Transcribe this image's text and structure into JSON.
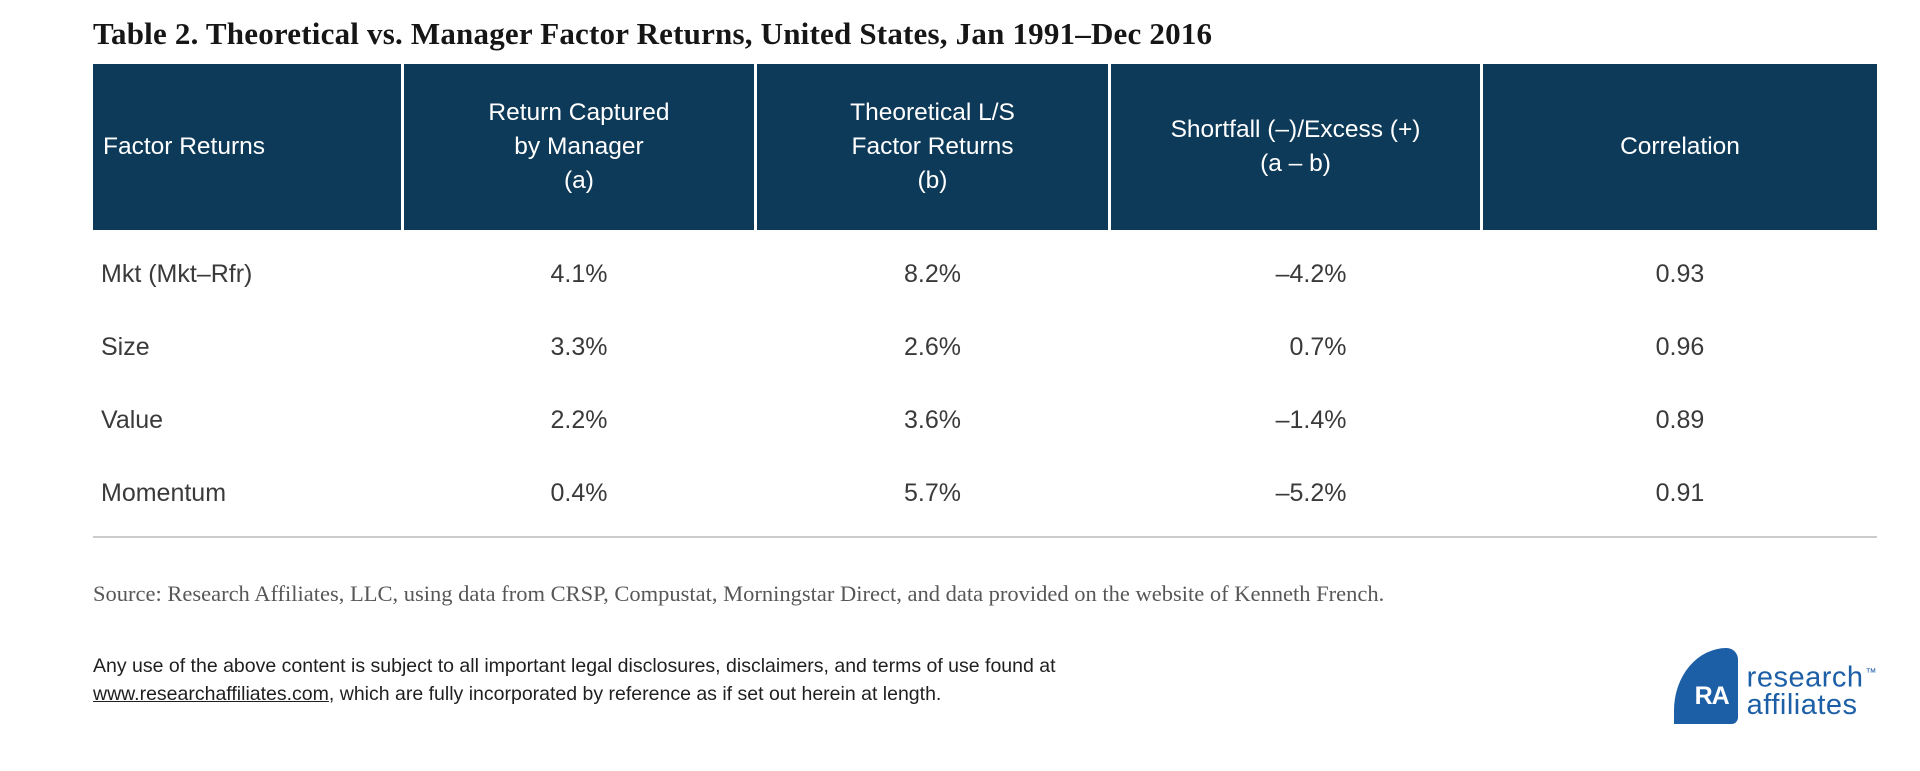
{
  "title": "Table 2. Theoretical vs. Manager Factor Returns, United States, Jan 1991–Dec 2016",
  "table": {
    "header": [
      {
        "lines": [
          "Factor Returns"
        ]
      },
      {
        "lines": [
          "Return Captured",
          "by Manager",
          "(a)"
        ]
      },
      {
        "lines": [
          "Theoretical L/S",
          "Factor Returns",
          "(b)"
        ]
      },
      {
        "lines": [
          "Shortfall (–)/Excess (+)",
          "(a – b)"
        ]
      },
      {
        "lines": [
          "Correlation"
        ]
      }
    ]
  },
  "chart_data": {
    "type": "table",
    "title": "Table 2. Theoretical vs. Manager Factor Returns, United States, Jan 1991–Dec 2016",
    "columns": [
      "Factor Returns",
      "Return Captured by Manager (a)",
      "Theoretical L/S Factor Returns (b)",
      "Shortfall (–)/Excess (+) (a – b)",
      "Correlation"
    ],
    "rows": [
      [
        "Mkt (Mkt–Rfr)",
        "4.1%",
        "8.2%",
        "–4.2%",
        "0.93"
      ],
      [
        "Size",
        "3.3%",
        "2.6%",
        "0.7%",
        "0.96"
      ],
      [
        "Value",
        "2.2%",
        "3.6%",
        "–1.4%",
        "0.89"
      ],
      [
        "Momentum",
        "0.4%",
        "5.7%",
        "–5.2%",
        "0.91"
      ]
    ]
  },
  "source": "Source: Research Affiliates, LLC, using data from CRSP, Compustat, Morningstar Direct, and  data provided on the website of Kenneth French.",
  "legal": {
    "line1": "Any use of the above content is subject to all important legal disclosures, disclaimers, and terms of use found at",
    "link": "www.researchaffiliates.com",
    "line2_rest": ", which are fully incorporated by reference as if set out herein at length."
  },
  "logo": {
    "monogram": "RA",
    "name_line1": "research",
    "name_line2": "affiliates",
    "trademark": "™"
  },
  "colors": {
    "header_navy": "#0e3a59",
    "logo_blue": "#1d5fa6",
    "rule_gray": "#cccccc",
    "body_text": "#3a3a3a",
    "source_text": "#575757"
  }
}
